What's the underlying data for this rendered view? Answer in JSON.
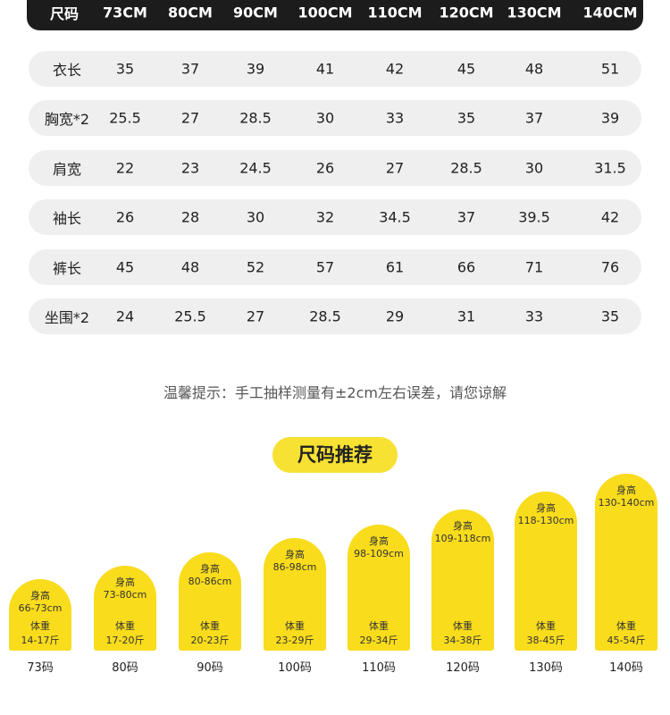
{
  "table": {
    "header": [
      "尺码",
      "73CM",
      "80CM",
      "90CM",
      "100CM",
      "110CM",
      "120CM",
      "130CM",
      "140CM"
    ],
    "rows": [
      [
        "衣长",
        "35",
        "37",
        "39",
        "41",
        "42",
        "45",
        "48",
        "51"
      ],
      [
        "胸宽*2",
        "25.5",
        "27",
        "28.5",
        "30",
        "33",
        "35",
        "37",
        "39"
      ],
      [
        "肩宽",
        "22",
        "23",
        "24.5",
        "26",
        "27",
        "28.5",
        "30",
        "31.5"
      ],
      [
        "袖长",
        "26",
        "28",
        "30",
        "32",
        "34.5",
        "37",
        "39.5",
        "42"
      ],
      [
        "裤长",
        "45",
        "48",
        "52",
        "57",
        "61",
        "66",
        "71",
        "76"
      ],
      [
        "坐围*2",
        "24",
        "25.5",
        "27",
        "28.5",
        "29",
        "31",
        "33",
        "35"
      ]
    ]
  },
  "note": "温馨提示：手工抽样测量有±2cm左右误差，请您谅解",
  "recommend": {
    "title": "尺码推荐",
    "sizes": [
      {
        "height_label": "身高",
        "height": "66-73cm",
        "weight_label": "体重",
        "weight": "14-17斤",
        "size": "73码"
      },
      {
        "height_label": "身高",
        "height": "73-80cm",
        "weight_label": "体重",
        "weight": "17-20斤",
        "size": "80码"
      },
      {
        "height_label": "身高",
        "height": "80-86cm",
        "weight_label": "体重",
        "weight": "20-23斤",
        "size": "90码"
      },
      {
        "height_label": "身高",
        "height": "86-98cm",
        "weight_label": "体重",
        "weight": "23-29斤",
        "size": "100码"
      },
      {
        "height_label": "身高",
        "height": "98-109cm",
        "weight_label": "体重",
        "weight": "29-34斤",
        "size": "110码"
      },
      {
        "height_label": "身高",
        "height": "109-118cm",
        "weight_label": "体重",
        "weight": "34-38斤",
        "size": "120码"
      },
      {
        "height_label": "身高",
        "height": "118-130cm",
        "weight_label": "体重",
        "weight": "38-45斤",
        "size": "130码"
      },
      {
        "height_label": "身高",
        "height": "130-140cm",
        "weight_label": "体重",
        "weight": "45-54斤",
        "size": "140码"
      }
    ]
  }
}
